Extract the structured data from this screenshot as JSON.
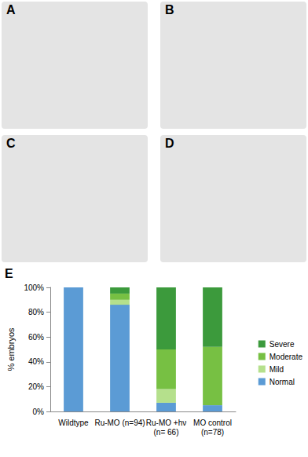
{
  "panels": [
    "A",
    "B",
    "C",
    "D"
  ],
  "chart_panel": "E",
  "chart_data": {
    "type": "bar",
    "categories": [
      "Wildtype",
      "Ru-MO (n=94)",
      "Ru-MO +hν\n(n= 66)",
      "MO control\n(n=78)"
    ],
    "series": [
      {
        "name": "Normal",
        "color": "#5b9bd5",
        "values": [
          100,
          86,
          7,
          5
        ]
      },
      {
        "name": "Mild",
        "color": "#b5e08c",
        "values": [
          0,
          4,
          11,
          0
        ]
      },
      {
        "name": "Moderate",
        "color": "#77c043",
        "values": [
          0,
          5,
          32,
          47
        ]
      },
      {
        "name": "Severe",
        "color": "#3c9a3c",
        "values": [
          0,
          5,
          50,
          48
        ]
      }
    ],
    "ylabel": "% embryos",
    "ylim": [
      0,
      100
    ],
    "yticks": [
      {
        "value": 0,
        "label": "0%"
      },
      {
        "value": 20,
        "label": "20%"
      },
      {
        "value": 40,
        "label": "40%"
      },
      {
        "value": 60,
        "label": "60%"
      },
      {
        "value": 80,
        "label": "80%"
      },
      {
        "value": 100,
        "label": "100%"
      }
    ],
    "stacked": true,
    "legend": "right",
    "grid": false
  }
}
